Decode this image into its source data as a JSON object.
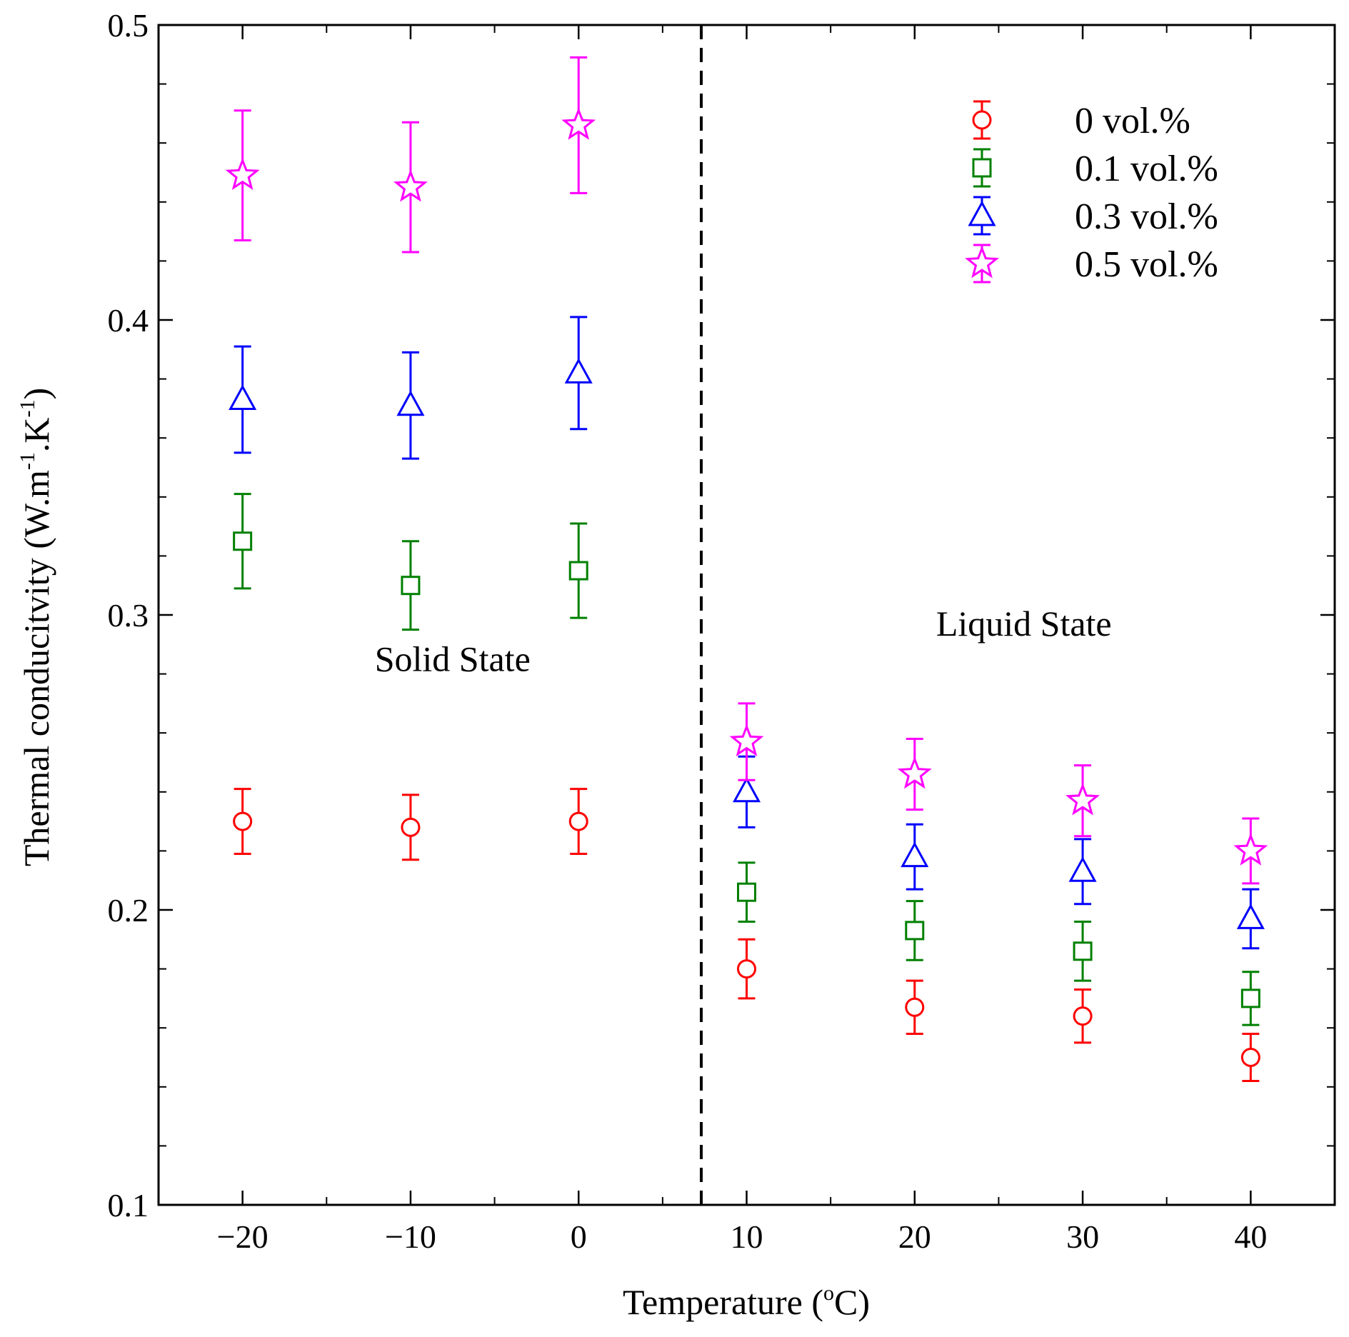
{
  "chart_data": {
    "type": "scatter",
    "title": "",
    "xlabel_main": "Temperature (",
    "xlabel_sup": "o",
    "xlabel_end": "C)",
    "ylabel_main": "Thermal conducitvity (W.m",
    "ylabel_sup1": "-1",
    "ylabel_mid": ".K",
    "ylabel_sup2": "-1",
    "ylabel_end": ")",
    "xlim": [
      -25,
      45
    ],
    "ylim": [
      0.1,
      0.5
    ],
    "x_ticks": [
      -20,
      -10,
      0,
      10,
      20,
      30,
      40
    ],
    "x_tick_labels": [
      "−20",
      "−10",
      "0",
      "10",
      "20",
      "30",
      "40"
    ],
    "y_ticks": [
      0.1,
      0.2,
      0.3,
      0.4,
      0.5
    ],
    "y_tick_labels": [
      "0.1",
      "0.2",
      "0.3",
      "0.4",
      "0.5"
    ],
    "phase_boundary_x": 7.3,
    "annotations": [
      {
        "text": "Solid State",
        "x": -7.5,
        "y": 0.281
      },
      {
        "text": "Liquid State",
        "x": 26.5,
        "y": 0.293
      }
    ],
    "x": [
      -20,
      -10,
      0,
      10,
      20,
      30,
      40
    ],
    "series": [
      {
        "name": "0 vol.%",
        "marker": "circle",
        "color": "#ff0000",
        "values": [
          0.23,
          0.228,
          0.23,
          0.18,
          0.167,
          0.164,
          0.15
        ],
        "errors": [
          0.011,
          0.011,
          0.011,
          0.01,
          0.009,
          0.009,
          0.008
        ]
      },
      {
        "name": "0.1 vol.%",
        "marker": "square",
        "color": "#008000",
        "values": [
          0.325,
          0.31,
          0.315,
          0.206,
          0.193,
          0.186,
          0.17
        ],
        "errors": [
          0.016,
          0.015,
          0.016,
          0.01,
          0.01,
          0.01,
          0.009
        ]
      },
      {
        "name": "0.3 vol.%",
        "marker": "triangle",
        "color": "#0000ff",
        "values": [
          0.373,
          0.371,
          0.382,
          0.24,
          0.218,
          0.213,
          0.197
        ],
        "errors": [
          0.018,
          0.018,
          0.019,
          0.012,
          0.011,
          0.011,
          0.01
        ]
      },
      {
        "name": "0.5 vol.%",
        "marker": "star",
        "color": "#ff00ff",
        "values": [
          0.449,
          0.445,
          0.466,
          0.257,
          0.246,
          0.237,
          0.22
        ],
        "errors": [
          0.022,
          0.022,
          0.023,
          0.013,
          0.012,
          0.012,
          0.011
        ]
      }
    ],
    "legend": {
      "placement": "top-right"
    }
  }
}
